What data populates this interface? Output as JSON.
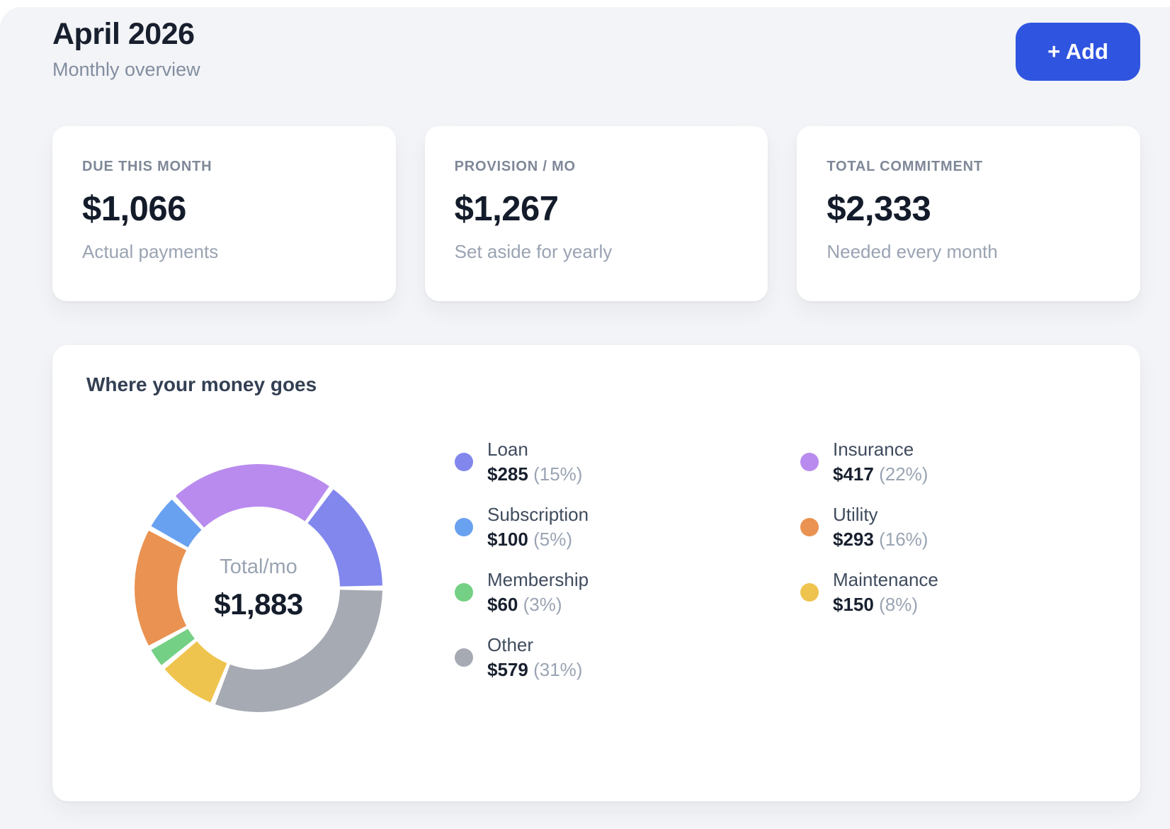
{
  "header": {
    "title": "April 2026",
    "subtitle": "Monthly overview"
  },
  "toolbar": {
    "add_label": "+ Add"
  },
  "stats": [
    {
      "label": "DUE THIS MONTH",
      "value": "$1,066",
      "sub": "Actual payments"
    },
    {
      "label": "PROVISION / MO",
      "value": "$1,267",
      "sub": "Set aside for yearly"
    },
    {
      "label": "TOTAL COMMITMENT",
      "value": "$2,333",
      "sub": "Needed every month"
    }
  ],
  "chart_card": {
    "title": "Where your money goes"
  },
  "chart_data": {
    "type": "pie",
    "title": "Where your money goes",
    "center_label": "Total/mo",
    "center_total": "$1,883",
    "items": [
      {
        "label": "Loan",
        "amount": 285,
        "amount_display": "$285",
        "pct": 15,
        "pct_display": "(15%)",
        "color": "#8187ed"
      },
      {
        "label": "Subscription",
        "amount": 100,
        "amount_display": "$100",
        "pct": 5,
        "pct_display": "(5%)",
        "color": "#69a1f1"
      },
      {
        "label": "Membership",
        "amount": 60,
        "amount_display": "$60",
        "pct": 3,
        "pct_display": "(3%)",
        "color": "#74d084"
      },
      {
        "label": "Other",
        "amount": 579,
        "amount_display": "$579",
        "pct": 31,
        "pct_display": "(31%)",
        "color": "#a6aab3"
      },
      {
        "label": "Insurance",
        "amount": 417,
        "amount_display": "$417",
        "pct": 22,
        "pct_display": "(22%)",
        "color": "#b98bee"
      },
      {
        "label": "Utility",
        "amount": 293,
        "amount_display": "$293",
        "pct": 16,
        "pct_display": "(16%)",
        "color": "#ea9251"
      },
      {
        "label": "Maintenance",
        "amount": 150,
        "amount_display": "$150",
        "pct": 8,
        "pct_display": "(8%)",
        "color": "#efc44e"
      }
    ],
    "layout": {
      "variant": "donut",
      "start_angle_deg": 90,
      "clockwise_draw_order": [
        "Other",
        "Maintenance",
        "Membership",
        "Utility",
        "Subscription",
        "Insurance",
        "Loan"
      ],
      "segment_gap_deg": 2.4,
      "legend_position": "right",
      "legend_columns": [
        [
          0,
          1,
          2,
          3
        ],
        [
          4,
          5,
          6
        ]
      ]
    },
    "colors": {
      "accent_blue": "#2f55e0",
      "panel_bg": "#f3f4f7",
      "card_bg": "#ffffff",
      "heading": "#181f2e",
      "muted": "#9aa3b2",
      "slate": "#3f4b5d"
    }
  }
}
